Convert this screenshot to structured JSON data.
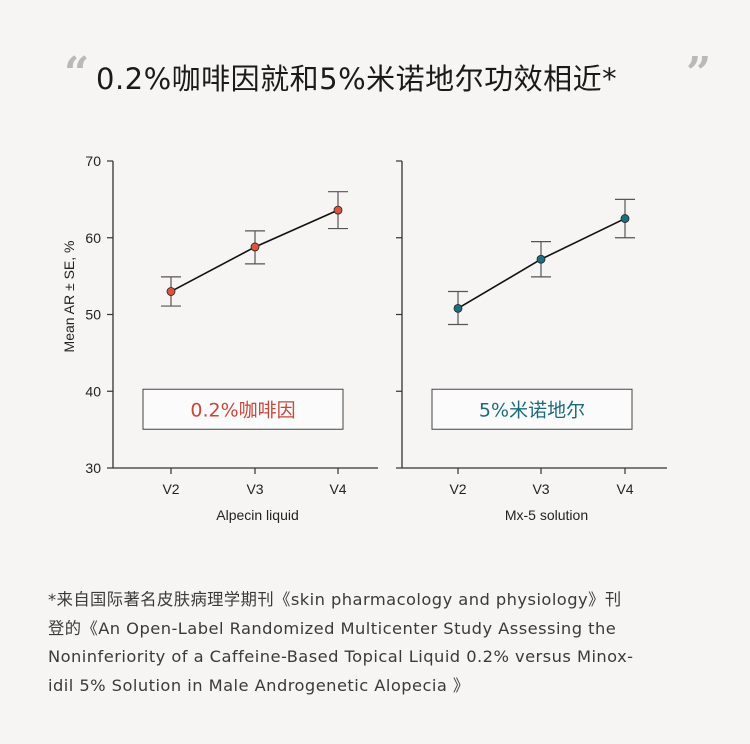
{
  "title": "0.2%咖啡因就和5%米诺地尔功效相近*",
  "quote_open": "“",
  "quote_close": "”",
  "footnote": {
    "lines": [
      "*来自国际著名皮肤病理学期刊《skin pharmacology and physiology》刊",
      "登的《An Open-Label Randomized Multicenter Study Assessing the",
      "Noninferiority of a Caffeine-Based Topical Liquid 0.2% versus Minox-",
      "idil 5% Solution in Male Androgenetic Alopecia 》"
    ]
  },
  "chart_data": [
    {
      "type": "line",
      "ylabel": "Mean AR ± SE, %",
      "xlabel": "Alpecin liquid",
      "categories": [
        "V2",
        "V3",
        "V4"
      ],
      "ylim": [
        30,
        70
      ],
      "yticks": [
        30,
        40,
        50,
        60,
        70
      ],
      "legend_label": "0.2%咖啡因",
      "color": "#e0533b",
      "label_color": "#c8463a",
      "series": [
        {
          "values": [
            53.0,
            58.8,
            63.6
          ],
          "err_low": [
            51.1,
            56.6,
            61.2
          ],
          "err_high": [
            54.9,
            60.9,
            66.0
          ]
        }
      ]
    },
    {
      "type": "line",
      "xlabel": "Mx-5 solution",
      "categories": [
        "V2",
        "V3",
        "V4"
      ],
      "ylim": [
        30,
        70
      ],
      "legend_label": "5%米诺地尔",
      "color": "#1a6f84",
      "label_color": "#1d6a7c",
      "series": [
        {
          "values": [
            50.8,
            57.2,
            62.5
          ],
          "err_low": [
            48.7,
            54.9,
            60.0
          ],
          "err_high": [
            53.0,
            59.5,
            65.0
          ]
        }
      ]
    }
  ]
}
